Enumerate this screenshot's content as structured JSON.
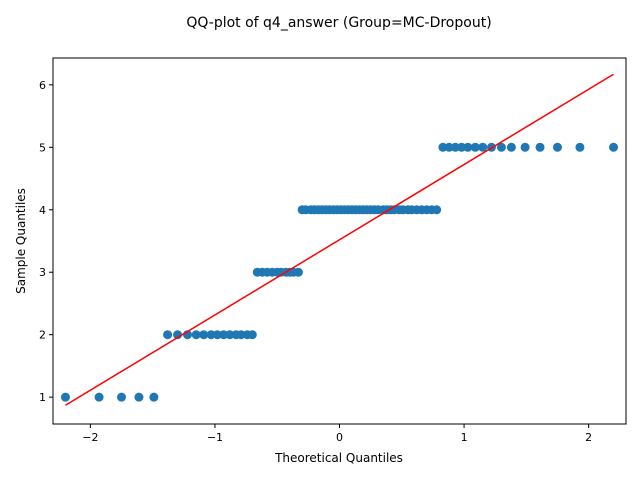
{
  "chart_data": {
    "type": "scatter",
    "title": "QQ-plot of q4_answer (Group=MC-Dropout)",
    "xlabel": "Theoretical Quantiles",
    "ylabel": "Sample Quantiles",
    "xlim": [
      -2.3,
      2.3
    ],
    "ylim": [
      0.57,
      6.43
    ],
    "x_ticks": [
      -2,
      -1,
      0,
      1,
      2
    ],
    "y_ticks": [
      1,
      2,
      3,
      4,
      5,
      6
    ],
    "grid": false,
    "legend": "none",
    "colors": {
      "points": "#1f77b4",
      "line": "#ff0000"
    },
    "points": {
      "x": [
        -2.2,
        -1.93,
        -1.75,
        -1.61,
        -1.49,
        -1.38,
        -1.3,
        -1.22,
        -1.15,
        -1.09,
        -1.03,
        -0.98,
        -0.93,
        -0.88,
        -0.83,
        -0.79,
        -0.74,
        -0.7,
        -0.66,
        -0.62,
        -0.58,
        -0.54,
        -0.5,
        -0.47,
        -0.43,
        -0.4,
        -0.37,
        -0.33,
        -0.3,
        -0.27,
        -0.23,
        -0.2,
        -0.17,
        -0.14,
        -0.11,
        -0.08,
        -0.05,
        -0.02,
        0.01,
        0.04,
        0.07,
        0.1,
        0.13,
        0.16,
        0.19,
        0.22,
        0.25,
        0.28,
        0.31,
        0.35,
        0.38,
        0.41,
        0.44,
        0.48,
        0.51,
        0.55,
        0.58,
        0.62,
        0.66,
        0.7,
        0.74,
        0.78,
        0.83,
        0.88,
        0.93,
        0.98,
        1.03,
        1.09,
        1.15,
        1.22,
        1.3,
        1.38,
        1.49,
        1.61,
        1.75,
        1.93,
        2.2
      ],
      "y": [
        1,
        1,
        1,
        1,
        1,
        2,
        2,
        2,
        2,
        2,
        2,
        2,
        2,
        2,
        2,
        2,
        2,
        2,
        3,
        3,
        3,
        3,
        3,
        3,
        3,
        3,
        3,
        3,
        4,
        4,
        4,
        4,
        4,
        4,
        4,
        4,
        4,
        4,
        4,
        4,
        4,
        4,
        4,
        4,
        4,
        4,
        4,
        4,
        4,
        4,
        4,
        4,
        4,
        4,
        4,
        4,
        4,
        4,
        4,
        4,
        4,
        4,
        5,
        5,
        5,
        5,
        5,
        5,
        5,
        5,
        5,
        5,
        5,
        5,
        5,
        5,
        5
      ]
    },
    "reference_line": {
      "x": [
        -2.2,
        2.2
      ],
      "y": [
        0.87,
        6.17
      ]
    }
  }
}
